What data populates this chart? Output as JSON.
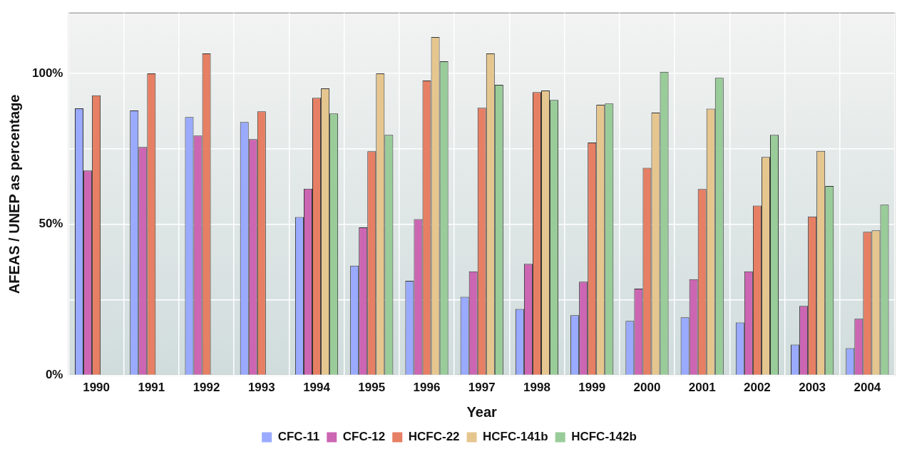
{
  "chart_data": {
    "type": "bar",
    "xlabel": "Year",
    "ylabel": "AFEAS / UNEP as percentage",
    "categories": [
      "1990",
      "1991",
      "1992",
      "1993",
      "1994",
      "1995",
      "1996",
      "1997",
      "1998",
      "1999",
      "2000",
      "2001",
      "2002",
      "2003",
      "2004"
    ],
    "series": [
      {
        "name": "CFC-11",
        "color": "#99aaff",
        "values": [
          88.4,
          87.7,
          85.5,
          83.9,
          52.4,
          36.3,
          31.3,
          26,
          22,
          19.9,
          18,
          19.2,
          17.5,
          10.2,
          9
        ]
      },
      {
        "name": "CFC-12",
        "color": "#cc66b3",
        "values": [
          67.8,
          75.6,
          79.4,
          78.2,
          61.8,
          49,
          51.7,
          34.4,
          36.9,
          31,
          28.7,
          31.8,
          34.4,
          23,
          18.7
        ]
      },
      {
        "name": "HCFC-22",
        "color": "#e67f63",
        "values": [
          92.7,
          100,
          106.6,
          87.4,
          91.9,
          74.2,
          97.6,
          88.6,
          93.8,
          77.1,
          68.7,
          61.7,
          56.2,
          52.6,
          47.5
        ]
      },
      {
        "name": "HCFC-141b",
        "color": "#e6c68f",
        "values": [
          null,
          null,
          null,
          null,
          95,
          100,
          112,
          106.6,
          94.3,
          89.6,
          87,
          88.3,
          72.3,
          74.3,
          48
        ]
      },
      {
        "name": "HCFC-142b",
        "color": "#99cc99",
        "values": [
          null,
          null,
          null,
          null,
          86.7,
          79.6,
          104,
          96.2,
          91.2,
          90,
          100.5,
          98.5,
          79.6,
          62.7,
          56.5
        ]
      }
    ],
    "ylim": [
      0,
      120
    ],
    "yticks": [
      {
        "value": 0,
        "label": "0%"
      },
      {
        "value": 25,
        "label": null
      },
      {
        "value": 50,
        "label": "50%"
      },
      {
        "value": 75,
        "label": null
      },
      {
        "value": 100,
        "label": "100%"
      }
    ],
    "grid": true,
    "legend": "bottom"
  }
}
